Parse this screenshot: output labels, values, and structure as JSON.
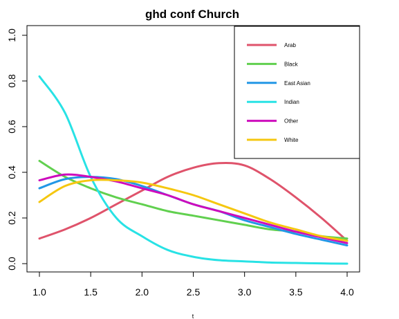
{
  "chart_data": {
    "type": "line",
    "title": "ghd conf Church",
    "xlabel": "t",
    "ylabel": "",
    "xlim": [
      1.0,
      4.0
    ],
    "ylim": [
      0.0,
      1.0
    ],
    "xticks": [
      "1.0",
      "1.5",
      "2.0",
      "2.5",
      "3.0",
      "3.5",
      "4.0"
    ],
    "yticks": [
      "0.0",
      "0.2",
      "0.4",
      "0.6",
      "0.8",
      "1.0"
    ],
    "legend_position": "top-right",
    "x": [
      1.0,
      1.25,
      1.5,
      1.75,
      2.0,
      2.25,
      2.5,
      2.75,
      3.0,
      3.25,
      3.5,
      3.75,
      4.0
    ],
    "series": [
      {
        "name": "Arab",
        "color": "#df536b",
        "values": [
          0.11,
          0.15,
          0.2,
          0.26,
          0.32,
          0.38,
          0.42,
          0.44,
          0.43,
          0.37,
          0.29,
          0.2,
          0.1
        ]
      },
      {
        "name": "Black",
        "color": "#61d04f",
        "values": [
          0.45,
          0.38,
          0.33,
          0.29,
          0.26,
          0.23,
          0.21,
          0.19,
          0.17,
          0.15,
          0.14,
          0.12,
          0.11
        ]
      },
      {
        "name": "East Asian",
        "color": "#2297e6",
        "values": [
          0.33,
          0.37,
          0.38,
          0.37,
          0.34,
          0.3,
          0.26,
          0.23,
          0.19,
          0.16,
          0.13,
          0.105,
          0.08
        ]
      },
      {
        "name": "Indian",
        "color": "#28e2e5",
        "values": [
          0.82,
          0.66,
          0.38,
          0.2,
          0.12,
          0.06,
          0.03,
          0.015,
          0.01,
          0.005,
          0.003,
          0.001,
          0.0
        ]
      },
      {
        "name": "Other",
        "color": "#cd0bbc",
        "values": [
          0.365,
          0.39,
          0.38,
          0.36,
          0.33,
          0.3,
          0.26,
          0.23,
          0.2,
          0.17,
          0.14,
          0.115,
          0.09
        ]
      },
      {
        "name": "White",
        "color": "#f5c710",
        "values": [
          0.27,
          0.34,
          0.365,
          0.365,
          0.355,
          0.33,
          0.3,
          0.26,
          0.22,
          0.18,
          0.15,
          0.12,
          0.1
        ]
      }
    ]
  }
}
